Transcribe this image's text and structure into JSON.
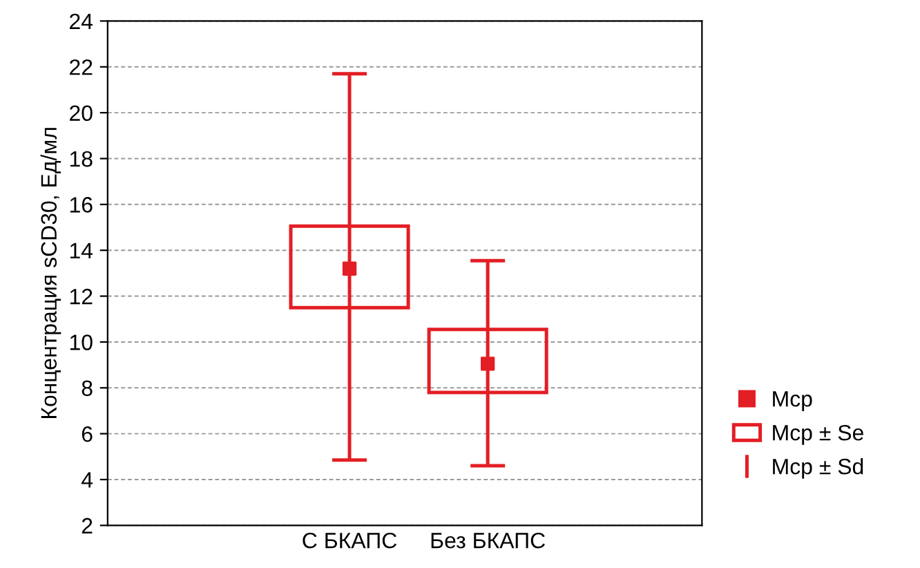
{
  "chart_data": {
    "type": "scatter",
    "ylabel": "Концентрация sCD30, Ед/мл",
    "categories": [
      "С БКАПС",
      "Без БКАПС"
    ],
    "ylim": [
      2,
      24
    ],
    "yticks": [
      2,
      4,
      6,
      8,
      10,
      12,
      14,
      16,
      18,
      20,
      22,
      24
    ],
    "grid": "y",
    "legend": "right",
    "series": [
      {
        "name": "Mcp",
        "marker": "square",
        "color": "#e31e24",
        "values": [
          13.2,
          9.05
        ],
        "errors": [
          [
            4.85,
            21.7
          ],
          [
            4.6,
            13.55
          ]
        ]
      },
      {
        "name": "Mcp ± Se",
        "type": "bar",
        "color": "#e31e24",
        "base": [
          11.5,
          7.8
        ],
        "values": [
          3.55,
          2.75
        ]
      },
      {
        "name": "Mcp ± Sd",
        "type": "scatter",
        "marker": "none",
        "color": "#e31e24",
        "values": [
          null,
          null
        ]
      }
    ]
  }
}
